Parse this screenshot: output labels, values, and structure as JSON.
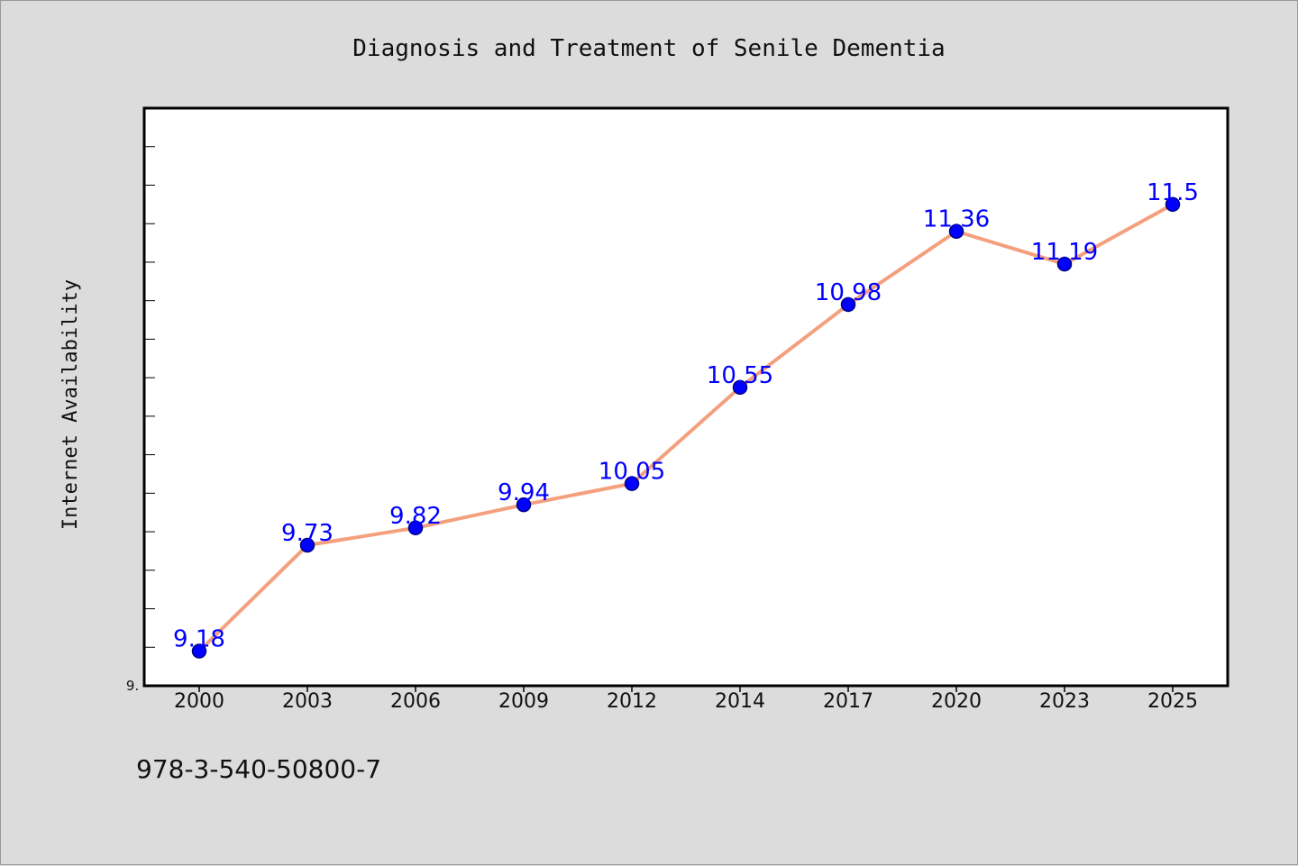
{
  "chart_data": {
    "type": "line",
    "title": "Diagnosis and Treatment of Senile Dementia",
    "xlabel": "",
    "ylabel": "Internet Availability",
    "categories": [
      "2000",
      "2003",
      "2006",
      "2009",
      "2012",
      "2014",
      "2017",
      "2020",
      "2023",
      "2025"
    ],
    "series": [
      {
        "values": [
          9.18,
          9.73,
          9.82,
          9.94,
          10.05,
          10.55,
          10.98,
          11.36,
          11.19,
          11.5
        ]
      }
    ],
    "data_labels": [
      "9.18",
      "9.73",
      "9.82",
      "9.94",
      "10.05",
      "10.55",
      "10.98",
      "11.36",
      "11.19",
      "11.5"
    ],
    "ylim": [
      9.0,
      12.0
    ],
    "y_min_label": "9.",
    "grid": false,
    "legend": "none",
    "colors": {
      "line": "#f4a07e",
      "marker": "#0000ff",
      "marker_edge": "#000080",
      "data_label": "#0000ff",
      "plot_background": "#ffffff",
      "page_background": "#dcdcdc"
    }
  },
  "footer": {
    "isbn": "978-3-540-50800-7"
  }
}
